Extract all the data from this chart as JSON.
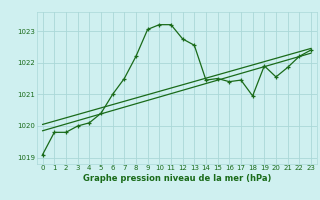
{
  "title": "Graphe pression niveau de la mer (hPa)",
  "background_color": "#cff0f0",
  "grid_color": "#aad8d8",
  "line_color": "#1a6b1a",
  "xlim": [
    -0.5,
    23.5
  ],
  "ylim": [
    1018.8,
    1023.6
  ],
  "yticks": [
    1019,
    1020,
    1021,
    1022,
    1023
  ],
  "xticks": [
    0,
    1,
    2,
    3,
    4,
    5,
    6,
    7,
    8,
    9,
    10,
    11,
    12,
    13,
    14,
    15,
    16,
    17,
    18,
    19,
    20,
    21,
    22,
    23
  ],
  "main_x": [
    0,
    1,
    2,
    3,
    4,
    5,
    6,
    7,
    8,
    9,
    10,
    11,
    12,
    13,
    14,
    15,
    16,
    17,
    18,
    19,
    20,
    21,
    22,
    23
  ],
  "main_y": [
    1019.1,
    1019.8,
    1019.8,
    1020.0,
    1020.1,
    1020.4,
    1021.0,
    1021.5,
    1022.2,
    1023.05,
    1023.2,
    1023.2,
    1022.75,
    1022.55,
    1021.45,
    1021.5,
    1021.4,
    1021.45,
    1020.95,
    1021.9,
    1021.55,
    1021.85,
    1022.2,
    1022.4
  ],
  "trend1_x": [
    0,
    23
  ],
  "trend1_y": [
    1019.85,
    1022.3
  ],
  "trend2_x": [
    0,
    23
  ],
  "trend2_y": [
    1020.05,
    1022.45
  ],
  "title_fontsize": 6,
  "tick_fontsize": 5
}
